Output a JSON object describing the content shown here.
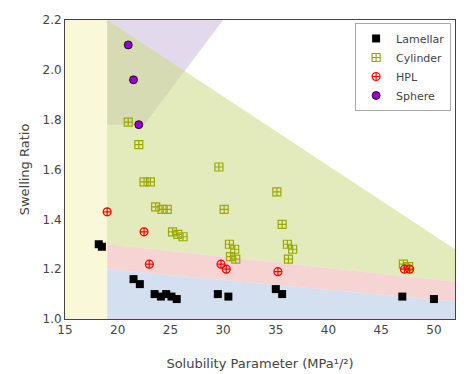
{
  "chart_data": {
    "type": "scatter",
    "xlabel": "Solubility Parameter (MPa¹/²)",
    "ylabel": "Swelling Ratio",
    "xlim": [
      15,
      52
    ],
    "ylim": [
      1.0,
      2.2
    ],
    "xticks": [
      15,
      20,
      25,
      30,
      35,
      40,
      45,
      50
    ],
    "yticks": [
      {
        "value": 1.0,
        "label": "1.0"
      },
      1.2,
      1.4,
      1.6,
      1.8,
      {
        "value": 2.0,
        "label": "2.0"
      },
      2.2
    ],
    "grid": false,
    "legend": "upper right",
    "zones": [
      {
        "color": "#f5f5c0",
        "points": [
          [
            15,
            1.0
          ],
          [
            19,
            1.0
          ],
          [
            19,
            2.2
          ],
          [
            15,
            2.2
          ]
        ]
      },
      {
        "color": "#cfc0e0",
        "points": [
          [
            19.0,
            1.78
          ],
          [
            19.0,
            2.2
          ],
          [
            30.0,
            2.2
          ],
          [
            22.5,
            1.78
          ]
        ]
      },
      {
        "color": "#d0dc90",
        "points": [
          [
            19.0,
            1.3
          ],
          [
            19.0,
            2.2
          ],
          [
            52.0,
            1.28
          ],
          [
            52.0,
            1.15
          ]
        ]
      },
      {
        "color": "#f0b8b8",
        "points": [
          [
            19.0,
            1.2
          ],
          [
            19.0,
            1.3
          ],
          [
            52.0,
            1.15
          ],
          [
            52.0,
            1.07
          ]
        ]
      },
      {
        "color": "#b8cce4",
        "points": [
          [
            19.0,
            1.0
          ],
          [
            19.0,
            1.2
          ],
          [
            52.0,
            1.07
          ],
          [
            52.0,
            1.0
          ]
        ]
      }
    ],
    "series": [
      {
        "name": "Lamellar",
        "color": "black",
        "marker": "square",
        "x": [
          18.2,
          18.5,
          21.5,
          22.1,
          23.5,
          24.1,
          24.6,
          25.1,
          25.6,
          29.5,
          30.5,
          35.0,
          35.6,
          47.0,
          50.0
        ],
        "values": [
          1.3,
          1.29,
          1.16,
          1.14,
          1.1,
          1.09,
          1.1,
          1.09,
          1.08,
          1.1,
          1.09,
          1.12,
          1.1,
          1.09,
          1.08
        ]
      },
      {
        "name": "Cylinder",
        "color": "#9aaa00",
        "marker": "square-cross-open",
        "x": [
          21.0,
          22.0,
          22.5,
          23.1,
          23.6,
          24.2,
          24.7,
          25.2,
          25.7,
          26.2,
          29.6,
          30.1,
          30.6,
          31.1,
          35.1,
          35.6,
          36.1,
          36.6,
          30.7,
          31.2,
          36.2,
          47.1,
          47.6
        ],
        "values": [
          1.79,
          1.7,
          1.55,
          1.55,
          1.45,
          1.44,
          1.44,
          1.35,
          1.34,
          1.33,
          1.61,
          1.44,
          1.3,
          1.28,
          1.51,
          1.38,
          1.3,
          1.28,
          1.25,
          1.24,
          1.24,
          1.22,
          1.21
        ]
      },
      {
        "name": "HPL",
        "color": "red",
        "marker": "circle-cross-open",
        "x": [
          19.0,
          22.5,
          23.0,
          29.8,
          30.3,
          35.2,
          47.2,
          47.7
        ],
        "values": [
          1.43,
          1.35,
          1.22,
          1.22,
          1.2,
          1.19,
          1.2,
          1.2
        ]
      },
      {
        "name": "Sphere",
        "color": "#9900cc",
        "marker": "circle",
        "x": [
          21.0,
          21.5,
          22.0
        ],
        "values": [
          2.1,
          1.96,
          1.78
        ]
      }
    ]
  }
}
